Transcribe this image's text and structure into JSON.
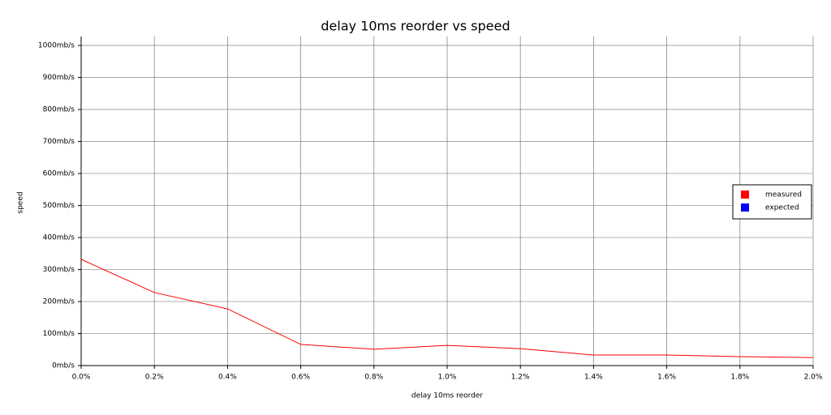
{
  "chart_data": {
    "type": "line",
    "title": "delay 10ms reorder vs speed",
    "x_label": "delay 10ms reorder",
    "y_label": "speed",
    "x": [
      0,
      0.2,
      0.4,
      0.6,
      0.8,
      1.0,
      1.2,
      1.4,
      1.6,
      1.8,
      2.0
    ],
    "series": [
      {
        "name": "measured",
        "color": "#ff0000",
        "values": [
          332,
          228,
          177,
          66,
          51,
          63,
          53,
          33,
          33,
          28,
          25
        ]
      },
      {
        "name": "expected",
        "color": "#0000ff",
        "values": [
          null,
          null,
          null,
          null,
          null,
          null,
          null,
          null,
          null,
          null,
          null
        ]
      }
    ],
    "xlim": [
      0,
      2.0
    ],
    "xticks": [
      {
        "value": 0,
        "label": "0.0%"
      },
      {
        "value": 0.2,
        "label": "0.2%"
      },
      {
        "value": 0.4,
        "label": "0.4%"
      },
      {
        "value": 0.6,
        "label": "0.6%"
      },
      {
        "value": 0.8,
        "label": "0.8%"
      },
      {
        "value": 1.0,
        "label": "1.0%"
      },
      {
        "value": 1.2,
        "label": "1.2%"
      },
      {
        "value": 1.4,
        "label": "1.4%"
      },
      {
        "value": 1.6,
        "label": "1.6%"
      },
      {
        "value": 1.8,
        "label": "1.8%"
      },
      {
        "value": 2.0,
        "label": "2.0%"
      }
    ],
    "ylim": [
      0,
      1028
    ],
    "yticks": [
      {
        "value": 0,
        "label": "0mb/s"
      },
      {
        "value": 100,
        "label": "100mb/s"
      },
      {
        "value": 200,
        "label": "200mb/s"
      },
      {
        "value": 300,
        "label": "300mb/s"
      },
      {
        "value": 400,
        "label": "400mb/s"
      },
      {
        "value": 500,
        "label": "500mb/s"
      },
      {
        "value": 600,
        "label": "600mb/s"
      },
      {
        "value": 700,
        "label": "700mb/s"
      },
      {
        "value": 800,
        "label": "800mb/s"
      },
      {
        "value": 900,
        "label": "900mb/s"
      },
      {
        "value": 1000,
        "label": "1000mb/s"
      }
    ],
    "grid": true,
    "legend": "right"
  }
}
